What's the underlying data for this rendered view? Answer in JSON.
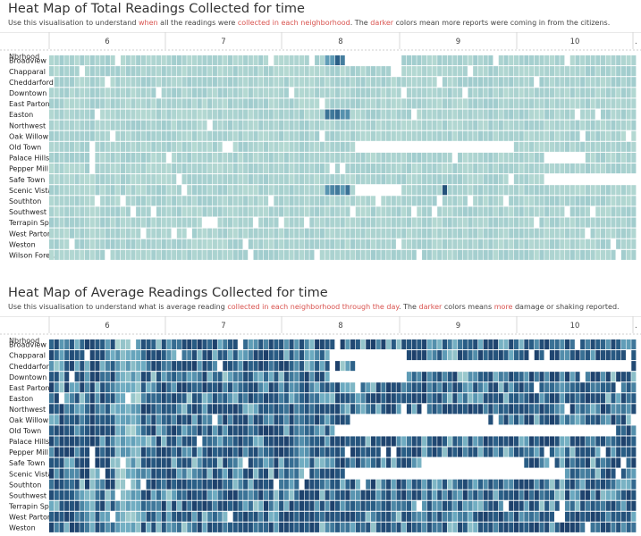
{
  "chart_data": [
    {
      "type": "heatmap",
      "title": "Heat Map of Total Readings Collected for time",
      "subtitle": {
        "p1": "Use this visualisation to understand ",
        "h1": "when",
        "p2": " all the readings were ",
        "h2": "collected in each neighborhood",
        "p3": ". The ",
        "h3": "darker",
        "p4": " colors mean more reports were coming in from the citizens."
      },
      "row_header": "Nbrhood",
      "columns": [
        "6",
        "7",
        "8",
        "9",
        "10",
        "."
      ],
      "rows": [
        "Broadview",
        "Chapparal",
        "Cheddarford",
        "Downtown",
        "East Parton",
        "Easton",
        "Northwest",
        "Oak Willow",
        "Old Town",
        "Palace Hills",
        "Pepper Mill",
        "Safe Town",
        "Scenic Vista",
        "Southton",
        "Southwest",
        "Terrapin Sp..",
        "West Parton",
        "Weston",
        "Wilson Fore.."
      ],
      "color_meaning": "darker = more reports"
    },
    {
      "type": "heatmap",
      "title": "Heat Map of Average Readings Collected for time",
      "subtitle": {
        "p1": "Use this visualisation to understand what is average reading ",
        "h1": "collected in each neighborhood through the day",
        "p2": ". The ",
        "h2": "darker",
        "p3": " colors means ",
        "h3": "more",
        "p4": " damage or shaking reported."
      },
      "row_header": "Nbrhood",
      "columns": [
        "6",
        "7",
        "8",
        "9",
        "10",
        "."
      ],
      "rows": [
        "Broadview",
        "Chapparal",
        "Cheddarford",
        "Downtown",
        "East Parton",
        "Easton",
        "Northwest",
        "Oak Willow",
        "Old Town",
        "Palace Hills",
        "Pepper Mill",
        "Safe Town",
        "Scenic Vista",
        "Southton",
        "Southwest",
        "Terrapin Sp..",
        "West Parton",
        "Weston"
      ],
      "color_meaning": "darker = more damage or shaking"
    }
  ],
  "colors": {
    "light": "#c3e2d6",
    "mid": "#6aa9c0",
    "dark": "#2a5f87",
    "darkest": "#1d3f6a",
    "highlight": "#d9534f",
    "grid": "#ffffff"
  }
}
